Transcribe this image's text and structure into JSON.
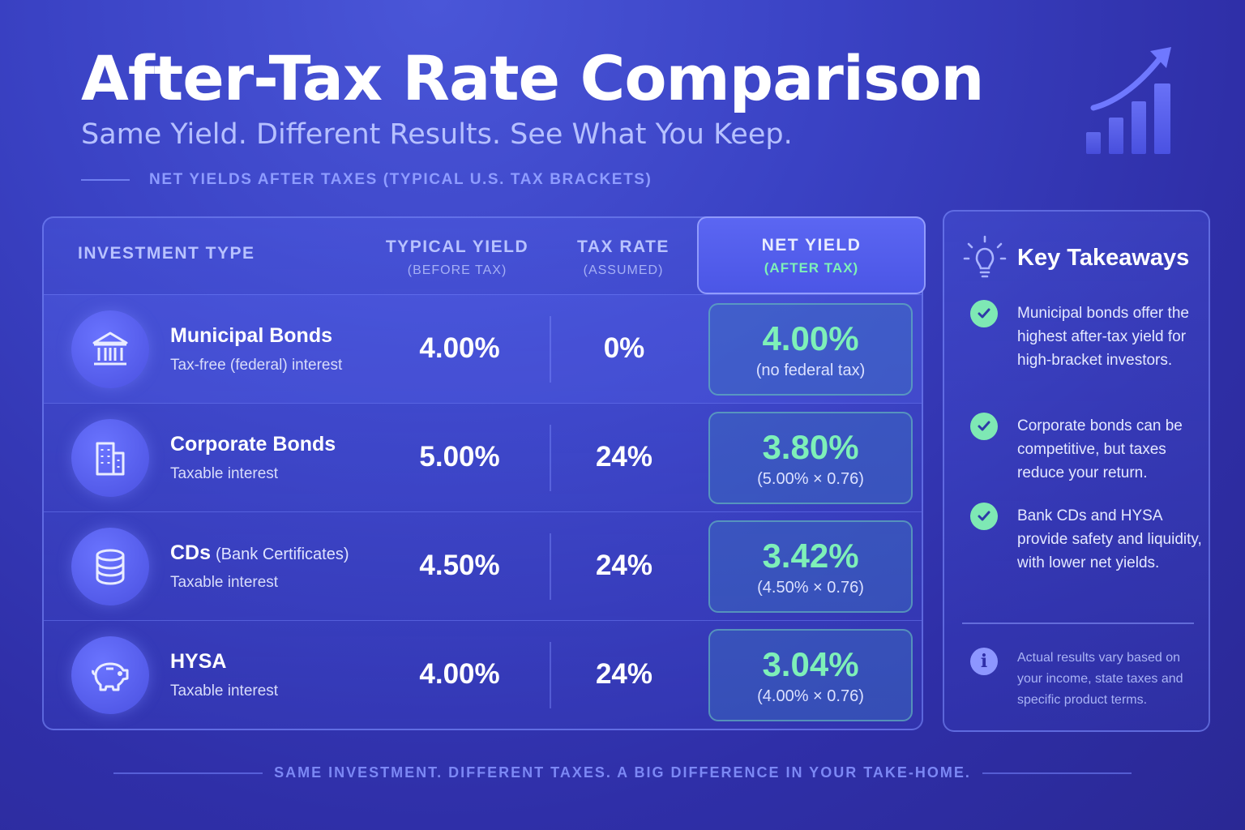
{
  "header": {
    "title": "After-Tax Rate Comparison",
    "subtitle": "Same Yield. Different Results. See What You Keep.",
    "caption": "NET YIELDS AFTER TAXES (TYPICAL U.S. TAX BRACKETS)",
    "icon": "growth-chart-icon"
  },
  "table": {
    "columns": {
      "type": "INVESTMENT TYPE",
      "yield": "TYPICAL YIELD",
      "yield_note": "(BEFORE TAX)",
      "tax": "TAX RATE",
      "tax_note": "(ASSUMED)",
      "net": "NET YIELD",
      "net_note": "(AFTER TAX)"
    },
    "rows": [
      {
        "name": "Municipal Bonds",
        "name_sub": "",
        "desc": "Tax-free (federal) interest",
        "yield": "4.00%",
        "tax": "0%",
        "net": "4.00%",
        "net_note": "(no federal tax)",
        "icon": "bank-building-icon"
      },
      {
        "name": "Corporate Bonds",
        "name_sub": "",
        "desc": "Taxable interest",
        "yield": "5.00%",
        "tax": "24%",
        "net": "3.80%",
        "net_note": "(5.00% × 0.76)",
        "icon": "office-building-icon"
      },
      {
        "name": "CDs",
        "name_sub": "(Bank Certificates)",
        "desc": "Taxable interest",
        "yield": "4.50%",
        "tax": "24%",
        "net": "3.42%",
        "net_note": "(4.50% × 0.76)",
        "icon": "coin-stack-icon"
      },
      {
        "name": "HYSA",
        "name_sub": "",
        "desc": "Taxable interest",
        "yield": "4.00%",
        "tax": "24%",
        "net": "3.04%",
        "net_note": "(4.00% × 0.76)",
        "icon": "piggy-bank-icon"
      }
    ]
  },
  "takeaways": {
    "title": "Key Takeaways",
    "icon": "lightbulb-icon",
    "items": [
      "Municipal bonds offer the highest after-tax yield for high-bracket investors.",
      "Corporate bonds can be competitive, but taxes reduce your return.",
      "Bank CDs and HYSA provide safety and liquidity, with lower net yields."
    ],
    "info_icon_glyph": "i",
    "note": "Actual results vary based on your income, state taxes and specific product terms."
  },
  "footer": "SAME INVESTMENT. DIFFERENT TAXES. A BIG DIFFERENCE IN YOUR TAKE-HOME.",
  "colors": {
    "accent_green": "#7ef0b8",
    "background": "#3a42c4",
    "header_highlight": "#5b66f2"
  }
}
